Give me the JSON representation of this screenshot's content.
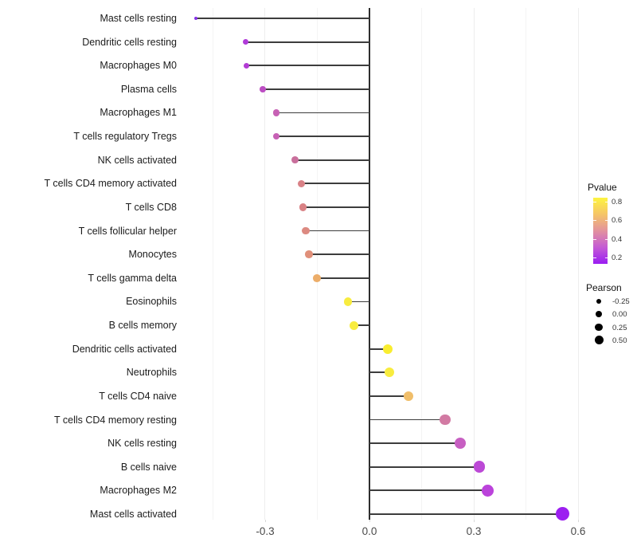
{
  "chart_data": {
    "type": "lollipop",
    "title": "",
    "xlabel": "",
    "ylabel": "",
    "x_ticks": [
      {
        "value": -0.3,
        "label": "-0.3"
      },
      {
        "value": 0.0,
        "label": "0.0"
      },
      {
        "value": 0.3,
        "label": "0.3"
      },
      {
        "value": 0.6,
        "label": "0.6"
      }
    ],
    "x_minor_ticks": [
      -0.45,
      -0.15,
      0.15,
      0.45
    ],
    "xlim": [
      -0.536,
      0.625
    ],
    "grid": true,
    "zero_line": true,
    "points": [
      {
        "label": "Mast cells resting",
        "pearson": -0.5,
        "pvalue": 0.02,
        "color": "#8531e6"
      },
      {
        "label": "Dendritic cells resting",
        "pearson": -0.355,
        "pvalue": 0.1,
        "color": "#b03bd9"
      },
      {
        "label": "Macrophages M0",
        "pearson": -0.353,
        "pvalue": 0.1,
        "color": "#b23cd4"
      },
      {
        "label": "Plasma cells",
        "pearson": -0.307,
        "pvalue": 0.15,
        "color": "#bc4dc3"
      },
      {
        "label": "Macrophages M1",
        "pearson": -0.268,
        "pvalue": 0.21,
        "color": "#c761b5"
      },
      {
        "label": "T cells regulatory  Tregs",
        "pearson": -0.268,
        "pvalue": 0.21,
        "color": "#c761b5"
      },
      {
        "label": "NK cells activated",
        "pearson": -0.215,
        "pvalue": 0.33,
        "color": "#c96f9c"
      },
      {
        "label": "T cells CD4 memory activated",
        "pearson": -0.195,
        "pvalue": 0.42,
        "color": "#d98287"
      },
      {
        "label": "T cells CD8",
        "pearson": -0.192,
        "pvalue": 0.42,
        "color": "#d98285"
      },
      {
        "label": "T cells follicular helper",
        "pearson": -0.183,
        "pvalue": 0.45,
        "color": "#dc8a81"
      },
      {
        "label": "Monocytes",
        "pearson": -0.174,
        "pvalue": 0.48,
        "color": "#e0907a"
      },
      {
        "label": "T cells gamma delta",
        "pearson": -0.151,
        "pvalue": 0.57,
        "color": "#ecad69"
      },
      {
        "label": "Eosinophils",
        "pearson": -0.062,
        "pvalue": 0.78,
        "color": "#f8ec3f"
      },
      {
        "label": "B cells memory",
        "pearson": -0.044,
        "pvalue": 0.8,
        "color": "#f8ec3f"
      },
      {
        "label": "Dendritic cells activated",
        "pearson": 0.053,
        "pvalue": 0.8,
        "color": "#f9ed2f"
      },
      {
        "label": "Neutrophils",
        "pearson": 0.057,
        "pvalue": 0.78,
        "color": "#f8ec3f"
      },
      {
        "label": "T cells CD4 naive",
        "pearson": 0.112,
        "pvalue": 0.6,
        "color": "#f0be6a"
      },
      {
        "label": "T cells CD4 memory resting",
        "pearson": 0.218,
        "pvalue": 0.35,
        "color": "#d27aa3"
      },
      {
        "label": "NK cells resting",
        "pearson": 0.261,
        "pvalue": 0.25,
        "color": "#c75fc2"
      },
      {
        "label": "B cells naive",
        "pearson": 0.316,
        "pvalue": 0.17,
        "color": "#bc49d6"
      },
      {
        "label": "Macrophages M2",
        "pearson": 0.339,
        "pvalue": 0.13,
        "color": "#bb43db"
      },
      {
        "label": "Mast cells activated",
        "pearson": 0.556,
        "pvalue": 0.01,
        "color": "#9c1ff0"
      }
    ],
    "legend_position": "right",
    "color_legend": {
      "title": "Pvalue",
      "gradient_stops": [
        "#fdf440",
        "#f6c567",
        "#e2929e",
        "#c45bd4",
        "#9a1cf2"
      ],
      "ticks": [
        {
          "value": 0.8,
          "label": "0.8"
        },
        {
          "value": 0.6,
          "label": "0.6"
        },
        {
          "value": 0.4,
          "label": "0.4"
        },
        {
          "value": 0.2,
          "label": "0.2"
        }
      ],
      "bar_value_top": 0.843,
      "bar_value_bottom": 0.131
    },
    "size_legend": {
      "title": "Pearson",
      "items": [
        {
          "label": "-0.25",
          "value": -0.25,
          "diameter": 6.5
        },
        {
          "label": "0.00",
          "value": 0.0,
          "diameter": 8
        },
        {
          "label": "0.25",
          "value": 0.25,
          "diameter": 9.5
        },
        {
          "label": "0.50",
          "value": 0.5,
          "diameter": 11
        }
      ],
      "dot_color": "#000000"
    },
    "stick_color": "#3d3d3d",
    "background": "#ffffff"
  }
}
